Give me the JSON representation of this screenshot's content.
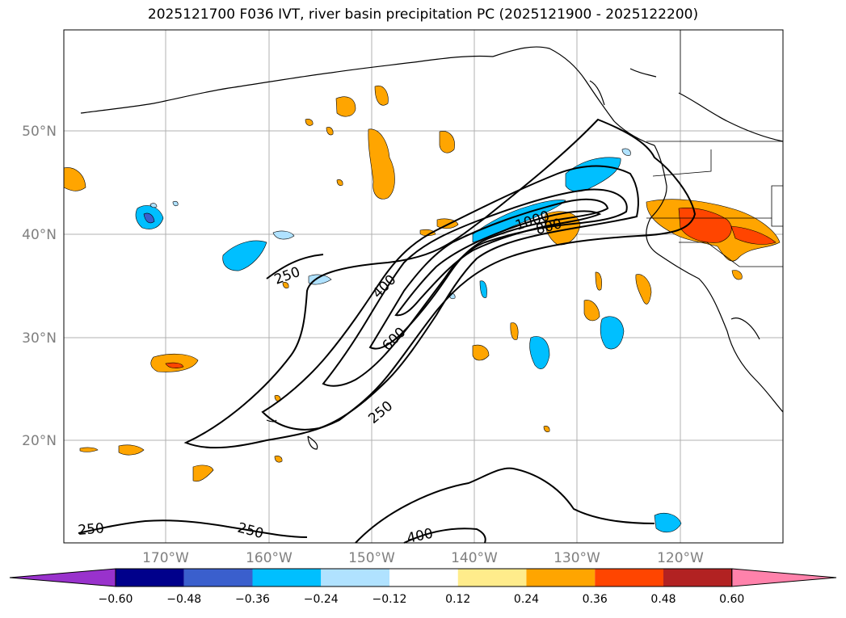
{
  "title": "2025121700 F036 IVT, river basin precipitation PC (2025121900 - 2025122200)",
  "map": {
    "lat_labels": [
      "50°N",
      "40°N",
      "30°N",
      "20°N"
    ],
    "lon_labels": [
      "170°W",
      "160°W",
      "150°W",
      "140°W",
      "130°W",
      "120°W"
    ],
    "contour_labels": [
      "250",
      "400",
      "600",
      "800",
      "1000",
      "250",
      "250",
      "250",
      "400"
    ]
  },
  "colorbar": {
    "colors": [
      "#9932cc",
      "#00008b",
      "#3a5fcd",
      "#00bfff",
      "#b0e2ff",
      "#ffffff",
      "#ffec8b",
      "#ffa500",
      "#ff4500",
      "#b22222",
      "#ff82ab"
    ],
    "tick_labels": [
      "−0.60",
      "−0.48",
      "−0.36",
      "−0.24",
      "−0.12",
      "0.12",
      "0.24",
      "0.36",
      "0.48",
      "0.60"
    ]
  }
}
